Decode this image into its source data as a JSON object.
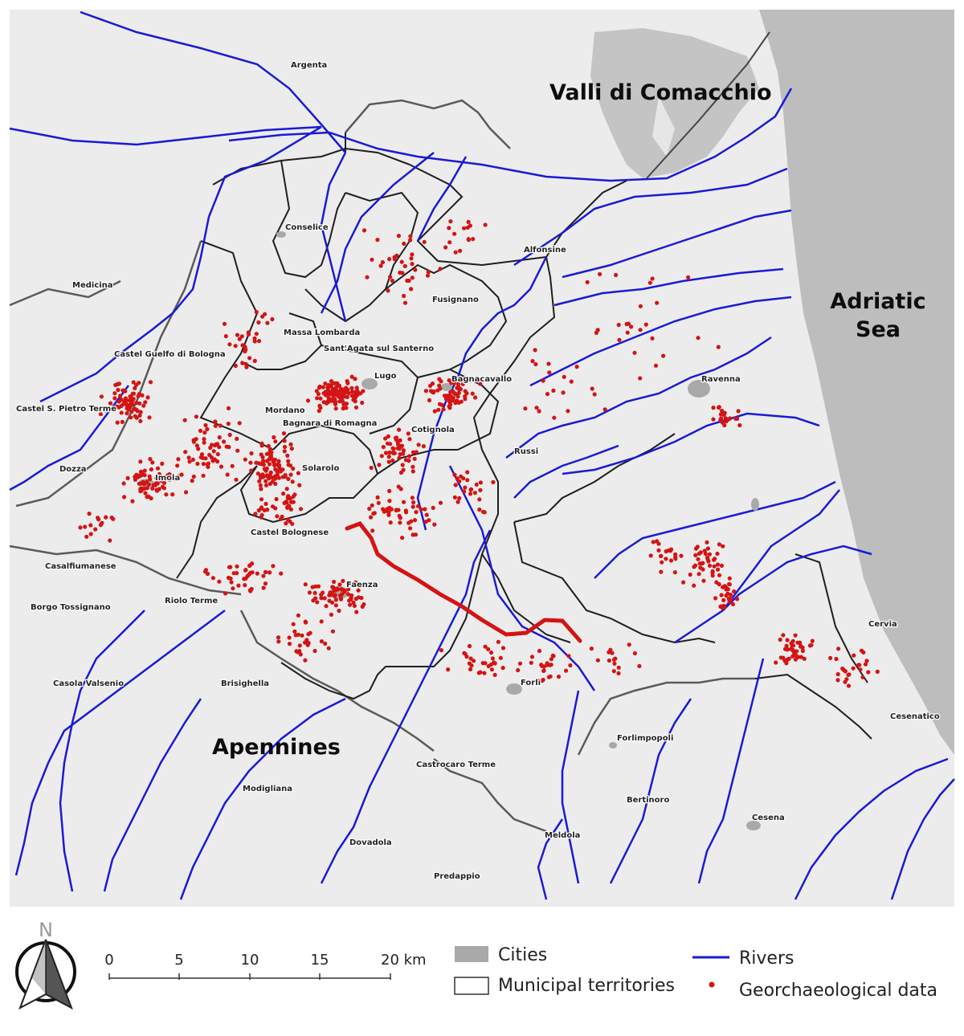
{
  "map": {
    "regions": [
      {
        "id": "valli",
        "text": "Valli di Comacchio"
      },
      {
        "id": "adriatic1",
        "text": "Adriatic"
      },
      {
        "id": "adriatic2",
        "text": "Sea"
      },
      {
        "id": "apennines",
        "text": "Apennines"
      }
    ],
    "places": [
      "Argenta",
      "Conselice",
      "Alfonsine",
      "Medicina",
      "Fusignano",
      "Massa Lombarda",
      "Sant'Agata sul Santerno",
      "Castel Guelfo di Bologna",
      "Lugo",
      "Bagnacavallo",
      "Ravenna",
      "Castel S. Pietro Terme",
      "Mordano",
      "Bagnara di Romagna",
      "Cotignola",
      "Russi",
      "Dozza",
      "Solarolo",
      "Imola",
      "Castel Bolognese",
      "Casalfiumanese",
      "Faenza",
      "Riolo Terme",
      "Borgo Tossignano",
      "Cervia",
      "Casola Valsenio",
      "Brisighella",
      "Forlì",
      "Cesenatico",
      "Forlimpopoli",
      "Castrocaro Terme",
      "Modigliana",
      "Bertinoro",
      "Cesena",
      "Dovadola",
      "Meldola",
      "Predappio"
    ],
    "colors": {
      "land": "#ececec",
      "sea": "#bdbdbd",
      "rivers": "#1a1ad6",
      "points": "#d41414",
      "boundaries": "#222222",
      "cities": "#a9a9a9"
    }
  },
  "legend": {
    "north_label": "N",
    "scale_labels": [
      "0",
      "5",
      "10",
      "15",
      "20 km"
    ],
    "cities": "Cities",
    "municipal": "Municipal territories",
    "rivers": "Rivers",
    "geo": "Georchaeological data"
  }
}
